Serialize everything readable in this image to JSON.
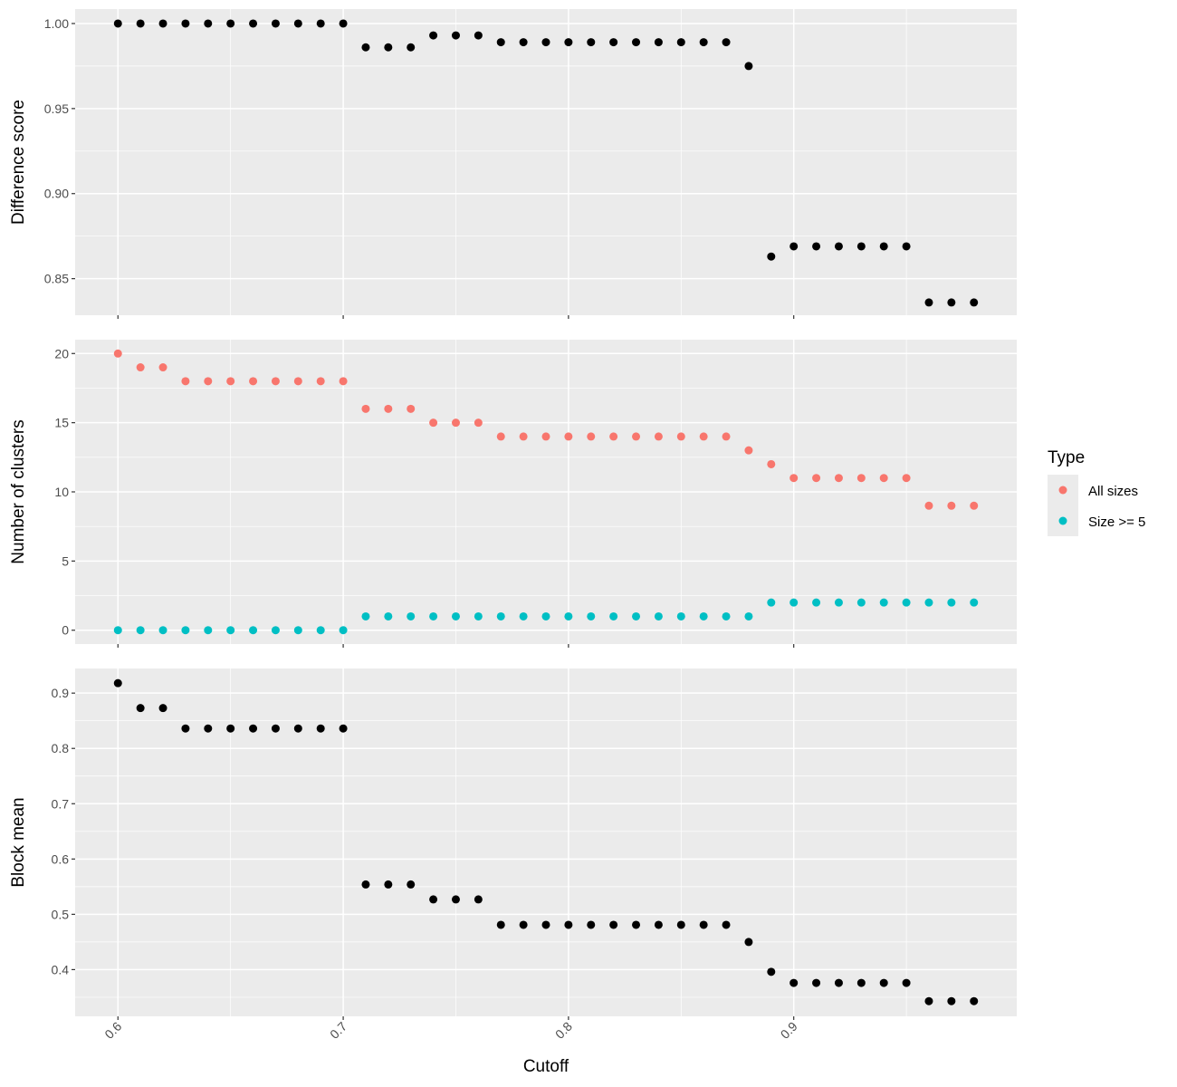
{
  "chart_data": {
    "type": "scatter",
    "xlabel": "Cutoff",
    "x": [
      0.6,
      0.61,
      0.62,
      0.63,
      0.64,
      0.65,
      0.66,
      0.67,
      0.68,
      0.69,
      0.7,
      0.71,
      0.72,
      0.73,
      0.74,
      0.75,
      0.76,
      0.77,
      0.78,
      0.79,
      0.8,
      0.81,
      0.82,
      0.83,
      0.84,
      0.85,
      0.86,
      0.87,
      0.88,
      0.89,
      0.9,
      0.91,
      0.92,
      0.93,
      0.94,
      0.95,
      0.96,
      0.97,
      0.98
    ],
    "xlim": [
      0.581,
      0.999
    ],
    "xticks": [
      {
        "value": 0.6,
        "label": "0.6"
      },
      {
        "value": 0.7,
        "label": "0.7"
      },
      {
        "value": 0.8,
        "label": "0.8"
      },
      {
        "value": 0.9,
        "label": "0.9"
      }
    ],
    "panels": [
      {
        "ylabel": "Difference score",
        "ylim": [
          0.8285,
          1.0085
        ],
        "yticks": [
          {
            "value": 0.85,
            "label": "0.85"
          },
          {
            "value": 0.9,
            "label": "0.90"
          },
          {
            "value": 0.95,
            "label": "0.95"
          },
          {
            "value": 1.0,
            "label": "1.00"
          }
        ],
        "series": [
          {
            "color": "#000000",
            "values": [
              1.0,
              1.0,
              1.0,
              1.0,
              1.0,
              1.0,
              1.0,
              1.0,
              1.0,
              1.0,
              1.0,
              0.986,
              0.986,
              0.986,
              0.993,
              0.993,
              0.993,
              0.989,
              0.989,
              0.989,
              0.989,
              0.989,
              0.989,
              0.989,
              0.989,
              0.989,
              0.989,
              0.989,
              0.975,
              0.863,
              0.869,
              0.869,
              0.869,
              0.869,
              0.869,
              0.869,
              0.836,
              0.836,
              0.836
            ]
          }
        ]
      },
      {
        "ylabel": "Number of clusters",
        "ylim": [
          -1,
          21
        ],
        "yticks": [
          {
            "value": 0,
            "label": "0"
          },
          {
            "value": 5,
            "label": "5"
          },
          {
            "value": 10,
            "label": "10"
          },
          {
            "value": 15,
            "label": "15"
          },
          {
            "value": 20,
            "label": "20"
          }
        ],
        "series": [
          {
            "name": "All sizes",
            "color": "#F8766D",
            "values": [
              20,
              19,
              19,
              18,
              18,
              18,
              18,
              18,
              18,
              18,
              18,
              16,
              16,
              16,
              15,
              15,
              15,
              14,
              14,
              14,
              14,
              14,
              14,
              14,
              14,
              14,
              14,
              14,
              13,
              12,
              11,
              11,
              11,
              11,
              11,
              11,
              9,
              9,
              9
            ]
          },
          {
            "name": "Size >= 5",
            "color": "#00BFC4",
            "values": [
              0,
              0,
              0,
              0,
              0,
              0,
              0,
              0,
              0,
              0,
              0,
              1,
              1,
              1,
              1,
              1,
              1,
              1,
              1,
              1,
              1,
              1,
              1,
              1,
              1,
              1,
              1,
              1,
              1,
              2,
              2,
              2,
              2,
              2,
              2,
              2,
              2,
              2,
              2
            ]
          }
        ]
      },
      {
        "ylabel": "Block mean",
        "ylim": [
          0.3155,
          0.9445
        ],
        "yticks": [
          {
            "value": 0.4,
            "label": "0.4"
          },
          {
            "value": 0.5,
            "label": "0.5"
          },
          {
            "value": 0.6,
            "label": "0.6"
          },
          {
            "value": 0.7,
            "label": "0.7"
          },
          {
            "value": 0.8,
            "label": "0.8"
          },
          {
            "value": 0.9,
            "label": "0.9"
          }
        ],
        "series": [
          {
            "color": "#000000",
            "values": [
              0.918,
              0.873,
              0.873,
              0.836,
              0.836,
              0.836,
              0.836,
              0.836,
              0.836,
              0.836,
              0.836,
              0.554,
              0.554,
              0.554,
              0.527,
              0.527,
              0.527,
              0.481,
              0.481,
              0.481,
              0.481,
              0.481,
              0.481,
              0.481,
              0.481,
              0.481,
              0.481,
              0.481,
              0.45,
              0.396,
              0.376,
              0.376,
              0.376,
              0.376,
              0.376,
              0.376,
              0.343,
              0.343,
              0.343
            ]
          }
        ]
      }
    ],
    "legend": {
      "title": "Type",
      "position": "right",
      "items": [
        {
          "label": "All sizes",
          "color": "#F8766D"
        },
        {
          "label": "Size >= 5",
          "color": "#00BFC4"
        }
      ]
    },
    "grid": true,
    "colors": {
      "panel_bg": "#EBEBEB",
      "grid": "#FFFFFF",
      "tick": "#333333"
    }
  }
}
